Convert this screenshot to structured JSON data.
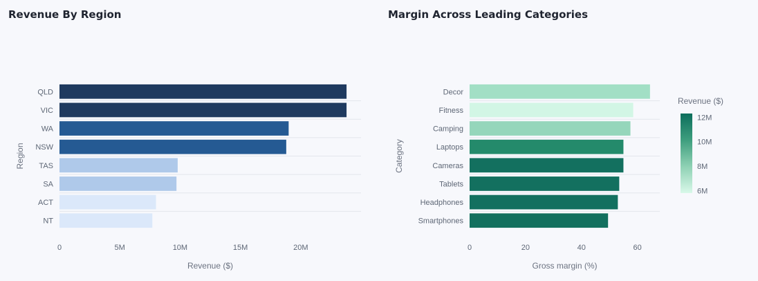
{
  "chart_data": [
    {
      "type": "bar",
      "orientation": "horizontal",
      "title": "Revenue By Region",
      "xlabel": "Revenue ($)",
      "ylabel": "Region",
      "categories": [
        "QLD",
        "VIC",
        "WA",
        "NSW",
        "TAS",
        "SA",
        "ACT",
        "NT"
      ],
      "values": [
        23800000,
        23800000,
        19000000,
        18800000,
        9800000,
        9700000,
        8000000,
        7700000
      ],
      "colors": [
        "#1f3a5f",
        "#1f3a5f",
        "#255a93",
        "#255a93",
        "#afc9ea",
        "#afc9ea",
        "#dbe8fa",
        "#dbe8fa"
      ],
      "xlim": [
        0,
        25000000
      ],
      "xticks": [
        0,
        5000000,
        10000000,
        15000000,
        20000000
      ],
      "xtick_labels": [
        "0",
        "5M",
        "10M",
        "15M",
        "20M"
      ],
      "grid": true
    },
    {
      "type": "bar",
      "orientation": "horizontal",
      "title": "Margin Across Leading Categories",
      "xlabel": "Gross margin (%)",
      "ylabel": "Category",
      "categories": [
        "Decor",
        "Fitness",
        "Camping",
        "Laptops",
        "Cameras",
        "Tablets",
        "Headphones",
        "Smartphones"
      ],
      "values": [
        64.5,
        58.5,
        57.5,
        55,
        55,
        53.5,
        53,
        49.5
      ],
      "colors": [
        "#a2dfc5",
        "#d2f6e5",
        "#95d6bb",
        "#248a6b",
        "#13705f",
        "#13705f",
        "#13705f",
        "#13705f"
      ],
      "xlim": [
        0,
        68
      ],
      "xticks": [
        0,
        20,
        40,
        60
      ],
      "xtick_labels": [
        "0",
        "20",
        "40",
        "60"
      ],
      "grid": true,
      "colorbar": {
        "title": "Revenue ($)",
        "tick_labels": [
          "12M",
          "10M",
          "8M",
          "6M"
        ],
        "tick_values": [
          12000000,
          10000000,
          8000000,
          6000000
        ],
        "range": [
          5800000,
          12300000
        ],
        "colors": [
          "#0c6e5c",
          "#3e9e7e",
          "#8fd1b4",
          "#d9f8e9"
        ]
      }
    }
  ]
}
